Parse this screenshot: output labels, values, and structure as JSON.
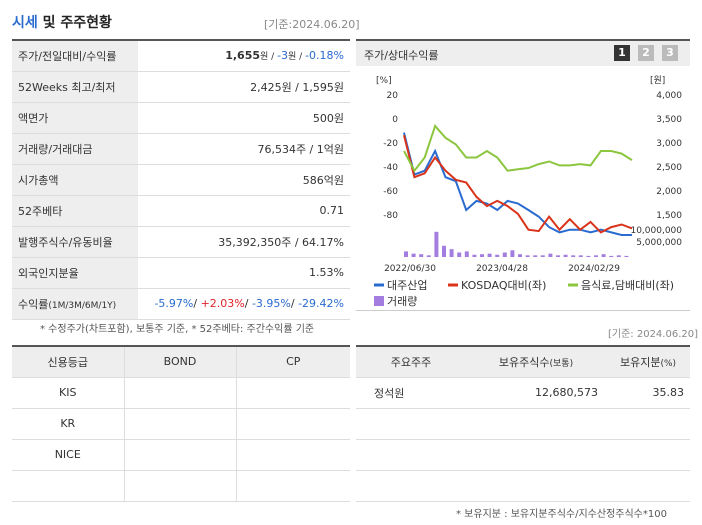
{
  "header": {
    "title_main": "시세",
    "title_rest": " 및 주주현황",
    "date": "[기준:2024.06.20]"
  },
  "info": [
    {
      "label": "주가/전일대비/수익률",
      "parts": [
        {
          "t": "1,655",
          "c": "strong"
        },
        {
          "t": "원 / ",
          "c": "small"
        },
        {
          "t": "-3",
          "c": "blue"
        },
        {
          "t": "원 / ",
          "c": "small"
        },
        {
          "t": "-0.18%",
          "c": "blue"
        }
      ]
    },
    {
      "label": "52Weeks 최고/최저",
      "value": "2,425원 / 1,595원"
    },
    {
      "label": "액면가",
      "value": "500원"
    },
    {
      "label": "거래량/거래대금",
      "value": "76,534주 / 1억원"
    },
    {
      "label": "시가총액",
      "value": "586억원"
    },
    {
      "label": "52주베타",
      "value": "0.71"
    },
    {
      "label": "발행주식수/유동비율",
      "value": "35,392,350주 / 64.17%"
    },
    {
      "label": "외국인지분율",
      "value": "1.53%"
    },
    {
      "label": "수익률",
      "sublabel": "(1M/3M/6M/1Y)",
      "parts": [
        {
          "t": "-5.97%",
          "c": "blue"
        },
        {
          "t": "/ ",
          "c": ""
        },
        {
          "t": "+2.03%",
          "c": "red"
        },
        {
          "t": "/ ",
          "c": ""
        },
        {
          "t": "-3.95%",
          "c": "blue"
        },
        {
          "t": "/ ",
          "c": ""
        },
        {
          "t": "-29.42%",
          "c": "blue"
        }
      ]
    }
  ],
  "note_left": "* 수정주가(차트포함), 보통주 기준, * 52주베타: 주간수익률 기준",
  "chart_panel": {
    "title": "주가/상대수익률",
    "tabs": [
      "1",
      "2",
      "3"
    ]
  },
  "chart_data": {
    "type": "line",
    "x_ticks": [
      "2022/06/30",
      "2023/04/28",
      "2024/02/29"
    ],
    "left_axis": {
      "label": "[%]",
      "ticks": [
        "20",
        "0",
        "-20",
        "-40",
        "-60",
        "-80"
      ],
      "range": [
        -90,
        25
      ]
    },
    "right_axis": {
      "label": "[원]",
      "ticks": [
        "4,000",
        "3,500",
        "3,000",
        "2,500",
        "2,000",
        "1,500"
      ],
      "range": [
        1300,
        4000
      ]
    },
    "volume_axis": {
      "ticks": [
        "10,000,000",
        "5,000,000"
      ]
    },
    "series": [
      {
        "name": "대주산업",
        "color": "#2a6bd0",
        "values": [
          4,
          -28,
          -25,
          -10,
          -30,
          -33,
          -55,
          -48,
          -50,
          -55,
          -48,
          -50,
          -55,
          -60,
          -68,
          -72,
          -70,
          -70,
          -72,
          -70,
          -72,
          -74,
          -74
        ]
      },
      {
        "name": "KOSDAQ대비(좌)",
        "color": "#d9331a",
        "values": [
          2,
          -30,
          -27,
          -15,
          -25,
          -32,
          -34,
          -45,
          -52,
          -48,
          -52,
          -58,
          -70,
          -71,
          -60,
          -70,
          -62,
          -70,
          -64,
          -72,
          -68,
          -66,
          -69
        ]
      },
      {
        "name": "음식료,담배대비(좌)",
        "color": "#8cc63f",
        "values": [
          -10,
          -25,
          -15,
          9,
          0,
          -5,
          -15,
          -15,
          -10,
          -15,
          -25,
          -24,
          -23,
          -20,
          -18,
          -21,
          -21,
          -20,
          -21,
          -10,
          -10,
          -12,
          -17
        ]
      }
    ],
    "volume_label": "거래량",
    "volume_color": "#a37ee0",
    "volume": [
      1,
      0.6,
      0.5,
      0.3,
      4.5,
      2,
      1.4,
      0.8,
      1,
      0.4,
      0.5,
      0.6,
      0.4,
      0.8,
      1.2,
      0.5,
      0.3,
      0.3,
      0.3,
      0.6,
      0.3,
      0.4,
      0.3,
      0.3,
      0.2,
      0.3,
      0.5,
      0.2,
      0.3,
      0.2
    ]
  },
  "note_right_date": "[기준: 2024.06.20]",
  "credit": {
    "headers": [
      "신용등급",
      "BOND",
      "CP"
    ],
    "rows": [
      [
        "KIS",
        "",
        ""
      ],
      [
        "KR",
        "",
        ""
      ],
      [
        "NICE",
        "",
        ""
      ],
      [
        "",
        "",
        ""
      ]
    ]
  },
  "holders": {
    "headers": [
      "주요주주",
      "보유주식수",
      "(보통)",
      "보유지분",
      "(%)"
    ],
    "rows": [
      [
        "정석원",
        "12,680,573",
        "35.83"
      ],
      [
        "",
        "",
        ""
      ],
      [
        "",
        "",
        ""
      ],
      [
        "",
        "",
        ""
      ]
    ]
  },
  "note_bottom": "* 보유지분 : 보유지분주식수/지수산정주식수*100"
}
